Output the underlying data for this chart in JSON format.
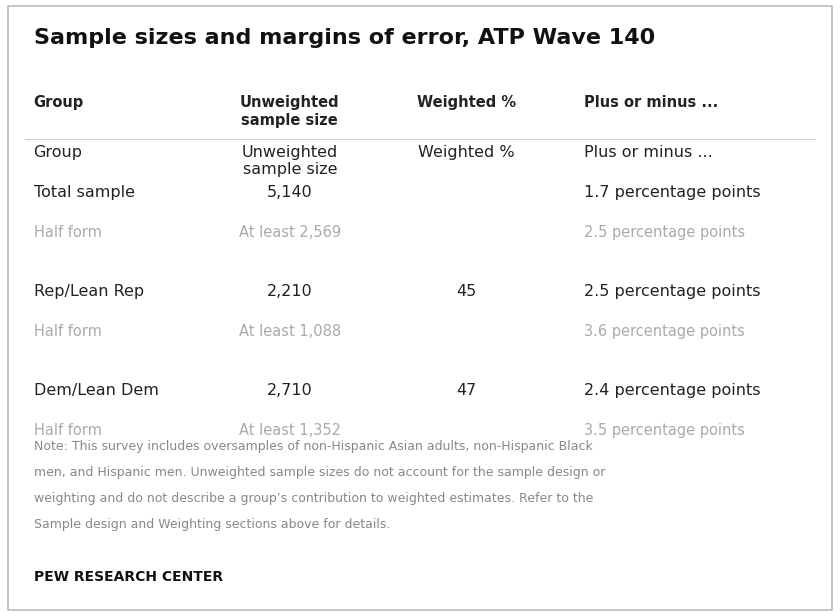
{
  "title": "Sample sizes and margins of error, ATP Wave 140",
  "title_fontsize": 16,
  "background_color": "#ffffff",
  "border_color": "#bbbbbb",
  "rows": [
    {
      "group": "Group",
      "unweighted": "Unweighted\nsample size",
      "weighted": "Weighted %",
      "plus_minus": "Plus or minus ...",
      "group_color": "#222222",
      "data_color": "#222222",
      "is_header": true,
      "is_subrow": false,
      "is_spacer": false
    },
    {
      "group": "Total sample",
      "unweighted": "5,140",
      "weighted": "",
      "plus_minus": "1.7 percentage points",
      "group_color": "#222222",
      "data_color": "#222222",
      "is_header": false,
      "is_subrow": false,
      "is_spacer": false
    },
    {
      "group": "Half form",
      "unweighted": "At least 2,569",
      "weighted": "",
      "plus_minus": "2.5 percentage points",
      "group_color": "#aaaaaa",
      "data_color": "#aaaaaa",
      "is_header": false,
      "is_subrow": true,
      "is_spacer": false
    },
    {
      "group": "",
      "unweighted": "",
      "weighted": "",
      "plus_minus": "",
      "group_color": "#ffffff",
      "data_color": "#ffffff",
      "is_header": false,
      "is_subrow": false,
      "is_spacer": true
    },
    {
      "group": "Rep/Lean Rep",
      "unweighted": "2,210",
      "weighted": "45",
      "plus_minus": "2.5 percentage points",
      "group_color": "#222222",
      "data_color": "#222222",
      "is_header": false,
      "is_subrow": false,
      "is_spacer": false
    },
    {
      "group": "Half form",
      "unweighted": "At least 1,088",
      "weighted": "",
      "plus_minus": "3.6 percentage points",
      "group_color": "#aaaaaa",
      "data_color": "#aaaaaa",
      "is_header": false,
      "is_subrow": true,
      "is_spacer": false
    },
    {
      "group": "",
      "unweighted": "",
      "weighted": "",
      "plus_minus": "",
      "group_color": "#ffffff",
      "data_color": "#ffffff",
      "is_header": false,
      "is_subrow": false,
      "is_spacer": true
    },
    {
      "group": "Dem/Lean Dem",
      "unweighted": "2,710",
      "weighted": "47",
      "plus_minus": "2.4 percentage points",
      "group_color": "#222222",
      "data_color": "#222222",
      "is_header": false,
      "is_subrow": false,
      "is_spacer": false
    },
    {
      "group": "Half form",
      "unweighted": "At least 1,352",
      "weighted": "",
      "plus_minus": "3.5 percentage points",
      "group_color": "#aaaaaa",
      "data_color": "#aaaaaa",
      "is_header": false,
      "is_subrow": true,
      "is_spacer": false
    }
  ],
  "note_lines": [
    "Note: This survey includes oversamples of non-Hispanic Asian adults, non-Hispanic Black",
    "men, and Hispanic men. Unweighted sample sizes do not account for the sample design or",
    "weighting and do not describe a group’s contribution to weighted estimates. Refer to the",
    "Sample design and Weighting sections above for details."
  ],
  "footer_text": "PEW RESEARCH CENTER",
  "note_fontsize": 9.0,
  "footer_fontsize": 10,
  "header_fontsize": 10.5,
  "row_fontsize": 11.5,
  "subrow_fontsize": 10.5,
  "c0": 0.04,
  "c1": 0.345,
  "c2": 0.555,
  "c3": 0.695
}
